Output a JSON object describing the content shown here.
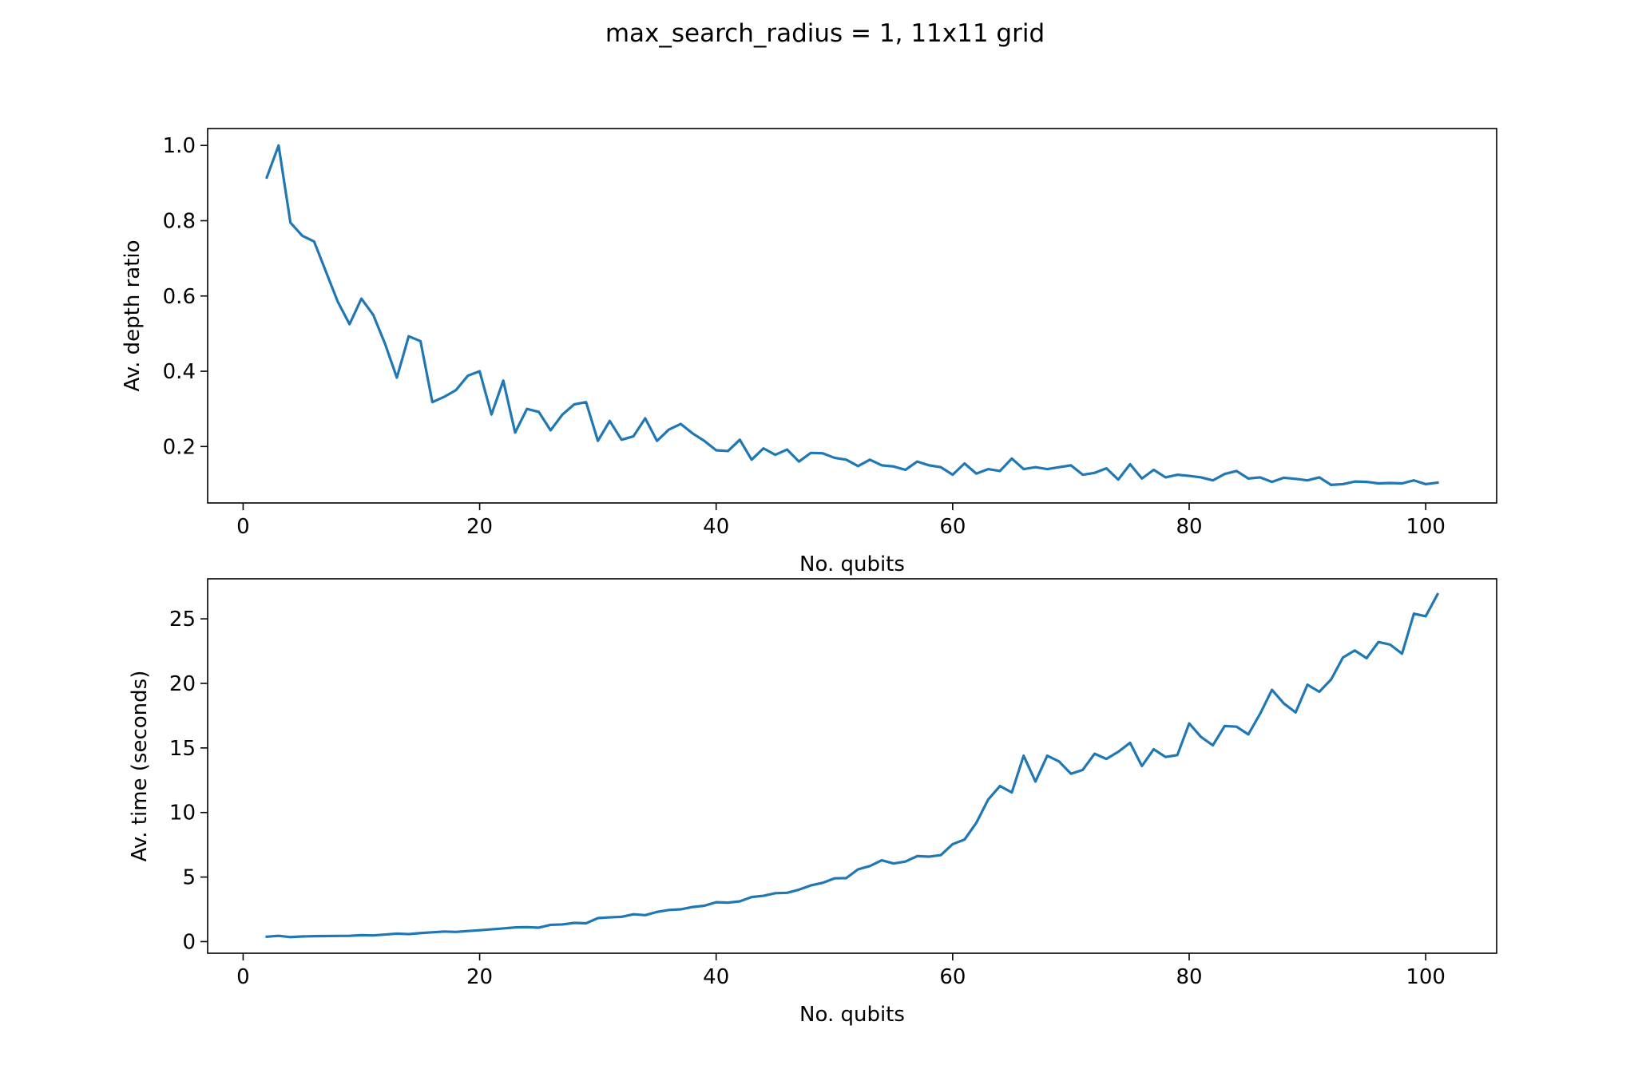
{
  "figure": {
    "suptitle": "max_search_radius = 1, 11x11 grid",
    "line_color": "#1f77b4"
  },
  "chart_data": [
    {
      "type": "line",
      "title": "",
      "xlabel": "No. qubits",
      "ylabel": "Av. depth ratio",
      "xlim": [
        -3,
        106
      ],
      "ylim": [
        0.05,
        1.045
      ],
      "xticks": [
        0,
        20,
        40,
        60,
        80,
        100
      ],
      "xtick_labels": [
        "0",
        "20",
        "40",
        "60",
        "80",
        "100"
      ],
      "yticks": [
        0.2,
        0.4,
        0.6,
        0.8,
        1.0
      ],
      "ytick_labels": [
        "0.2",
        "0.4",
        "0.6",
        "0.8",
        "1.0"
      ],
      "grid": false,
      "series": [
        {
          "x": [
            2,
            3,
            4,
            5,
            6,
            7,
            8,
            9,
            10,
            11,
            12,
            13,
            14,
            15,
            16,
            17,
            18,
            19,
            20,
            21,
            22,
            23,
            24,
            25,
            26,
            27,
            28,
            29,
            30,
            31,
            32,
            33,
            34,
            35,
            36,
            37,
            38,
            39,
            40,
            41,
            42,
            43,
            44,
            45,
            46,
            47,
            48,
            49,
            50,
            51,
            52,
            53,
            54,
            55,
            56,
            57,
            58,
            59,
            60,
            61,
            62,
            63,
            64,
            65,
            66,
            67,
            68,
            69,
            70,
            71,
            72,
            73,
            74,
            75,
            76,
            77,
            78,
            79,
            80,
            81,
            82,
            83,
            84,
            85,
            86,
            87,
            88,
            89,
            90,
            91,
            92,
            93,
            94,
            95,
            96,
            97,
            98,
            99,
            100,
            101
          ],
          "values": [
            0.915,
            1.0,
            0.795,
            0.76,
            0.745,
            0.665,
            0.585,
            0.525,
            0.593,
            0.55,
            0.473,
            0.383,
            0.493,
            0.48,
            0.318,
            0.332,
            0.35,
            0.388,
            0.4,
            0.285,
            0.375,
            0.237,
            0.3,
            0.292,
            0.243,
            0.285,
            0.312,
            0.318,
            0.215,
            0.268,
            0.218,
            0.227,
            0.275,
            0.215,
            0.245,
            0.26,
            0.235,
            0.215,
            0.19,
            0.188,
            0.218,
            0.165,
            0.195,
            0.178,
            0.192,
            0.16,
            0.183,
            0.182,
            0.17,
            0.165,
            0.148,
            0.165,
            0.15,
            0.147,
            0.138,
            0.16,
            0.15,
            0.145,
            0.125,
            0.155,
            0.128,
            0.14,
            0.135,
            0.168,
            0.14,
            0.145,
            0.14,
            0.145,
            0.15,
            0.125,
            0.13,
            0.142,
            0.112,
            0.153,
            0.115,
            0.138,
            0.118,
            0.125,
            0.122,
            0.118,
            0.11,
            0.127,
            0.135,
            0.115,
            0.118,
            0.106,
            0.117,
            0.114,
            0.11,
            0.118,
            0.098,
            0.1,
            0.107,
            0.106,
            0.102,
            0.103,
            0.102,
            0.11,
            0.1,
            0.104
          ]
        }
      ]
    },
    {
      "type": "line",
      "title": "",
      "xlabel": "No. qubits",
      "ylabel": "Av. time (seconds)",
      "xlim": [
        -3,
        106
      ],
      "ylim": [
        -0.9,
        28.1
      ],
      "xticks": [
        0,
        20,
        40,
        60,
        80,
        100
      ],
      "xtick_labels": [
        "0",
        "20",
        "40",
        "60",
        "80",
        "100"
      ],
      "yticks": [
        0,
        5,
        10,
        15,
        20,
        25
      ],
      "ytick_labels": [
        "0",
        "5",
        "10",
        "15",
        "20",
        "25"
      ],
      "grid": false,
      "series": [
        {
          "x": [
            2,
            3,
            4,
            5,
            6,
            7,
            8,
            9,
            10,
            11,
            12,
            13,
            14,
            15,
            16,
            17,
            18,
            19,
            20,
            21,
            22,
            23,
            24,
            25,
            26,
            27,
            28,
            29,
            30,
            31,
            32,
            33,
            34,
            35,
            36,
            37,
            38,
            39,
            40,
            41,
            42,
            43,
            44,
            45,
            46,
            47,
            48,
            49,
            50,
            51,
            52,
            53,
            54,
            55,
            56,
            57,
            58,
            59,
            60,
            61,
            62,
            63,
            64,
            65,
            66,
            67,
            68,
            69,
            70,
            71,
            72,
            73,
            74,
            75,
            76,
            77,
            78,
            79,
            80,
            81,
            82,
            83,
            84,
            85,
            86,
            87,
            88,
            89,
            90,
            91,
            92,
            93,
            94,
            95,
            96,
            97,
            98,
            99,
            100,
            101
          ],
          "values": [
            0.38,
            0.45,
            0.35,
            0.4,
            0.42,
            0.43,
            0.44,
            0.45,
            0.5,
            0.48,
            0.55,
            0.62,
            0.58,
            0.66,
            0.72,
            0.78,
            0.75,
            0.82,
            0.88,
            0.95,
            1.02,
            1.1,
            1.12,
            1.08,
            1.3,
            1.33,
            1.45,
            1.42,
            1.82,
            1.88,
            1.92,
            2.12,
            2.05,
            2.3,
            2.45,
            2.5,
            2.68,
            2.78,
            3.05,
            3.02,
            3.12,
            3.45,
            3.55,
            3.75,
            3.78,
            4.02,
            4.35,
            4.55,
            4.9,
            4.92,
            5.6,
            5.85,
            6.3,
            6.05,
            6.2,
            6.62,
            6.58,
            6.7,
            7.55,
            7.9,
            9.2,
            11.0,
            12.05,
            11.55,
            14.4,
            12.4,
            14.4,
            13.95,
            13.0,
            13.3,
            14.55,
            14.15,
            14.7,
            15.4,
            13.6,
            14.9,
            14.3,
            14.45,
            16.9,
            15.85,
            15.2,
            16.7,
            16.65,
            16.05,
            17.65,
            19.5,
            18.45,
            17.75,
            19.9,
            19.35,
            20.3,
            22.0,
            22.55,
            21.95,
            23.2,
            23.0,
            22.3,
            25.4,
            25.2,
            26.9
          ]
        }
      ]
    }
  ]
}
